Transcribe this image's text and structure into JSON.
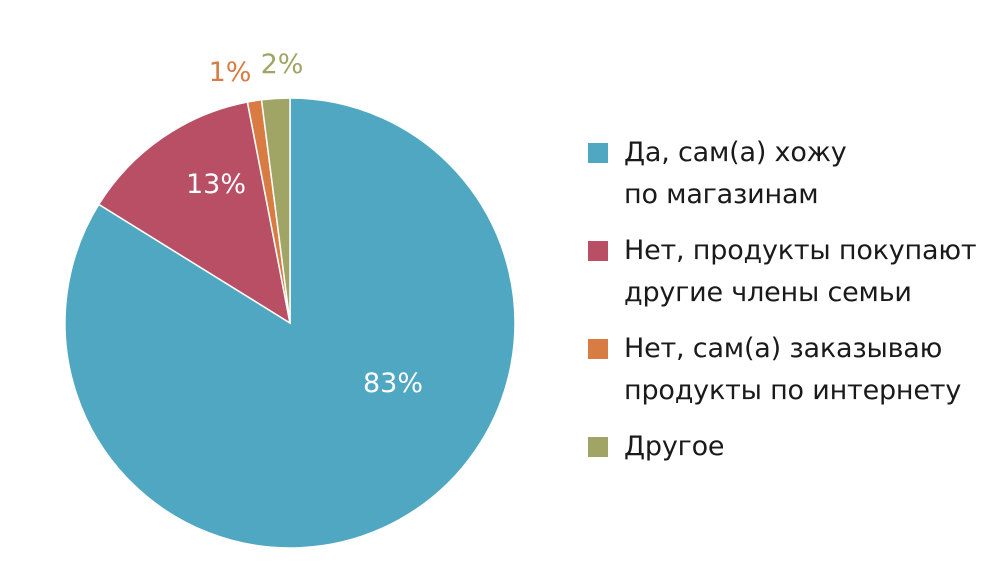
{
  "chart_data": {
    "type": "pie",
    "title": "",
    "slices": [
      {
        "label": "Да, сам(а) хожу\nпо магазинам",
        "value": 83,
        "value_label": "83%",
        "color": "#4fa7c2",
        "label_color": "#ffffff"
      },
      {
        "label": "Нет, продукты покупают\nдругие члены семьи",
        "value": 13,
        "value_label": "13%",
        "color": "#b94f65",
        "label_color": "#ffffff"
      },
      {
        "label": "Нет, сам(а) заказываю\nпродукты по интернету",
        "value": 1,
        "value_label": "1%",
        "color": "#d97c43",
        "label_color": "#d97c43"
      },
      {
        "label": "Другое",
        "value": 2,
        "value_label": "2%",
        "color": "#a0a565",
        "label_color": "#a0a565"
      }
    ],
    "legend_position": "right",
    "start": "top",
    "direction": "clockwise"
  }
}
